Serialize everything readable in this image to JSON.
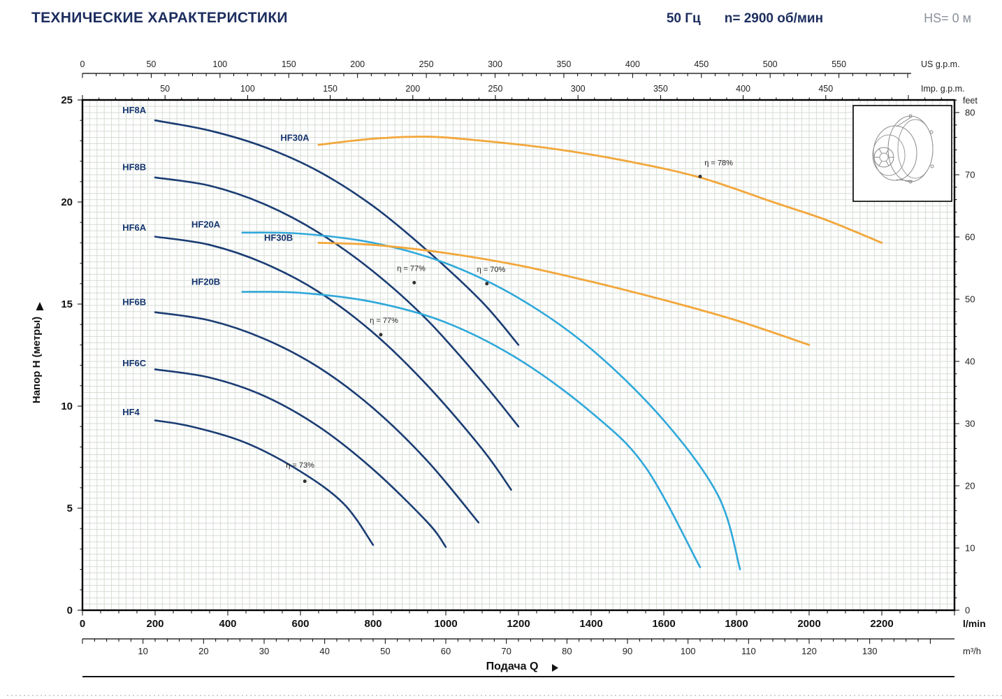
{
  "header": {
    "title": "ТЕХНИЧЕСКИЕ ХАРАКТЕРИСТИКИ",
    "frequency": "50 Гц",
    "speed": "n= 2900 об/мин",
    "suction_head": "HS= 0 м"
  },
  "axes": {
    "us_gpm": {
      "unit": "US g.p.m.",
      "ticks": [
        0,
        50,
        100,
        150,
        200,
        250,
        300,
        350,
        400,
        450,
        500,
        550
      ]
    },
    "imp_gpm": {
      "unit": "Imp. g.p.m.",
      "ticks": [
        50,
        100,
        150,
        200,
        250,
        300,
        350,
        400,
        450
      ]
    },
    "lmin": {
      "unit": "l/min",
      "ticks": [
        0,
        200,
        400,
        600,
        800,
        1000,
        1200,
        1400,
        1600,
        1800,
        2000,
        2200
      ]
    },
    "m3h": {
      "unit": "m³/h",
      "ticks": [
        10,
        20,
        30,
        40,
        50,
        60,
        70,
        80,
        90,
        100,
        110,
        120,
        130
      ]
    },
    "head_m": {
      "title": "Напор H (метры)",
      "ticks": [
        0,
        5,
        10,
        15,
        20,
        25
      ]
    },
    "feet": {
      "unit": "feet",
      "ticks": [
        0,
        10,
        20,
        30,
        40,
        50,
        60,
        70,
        80
      ]
    },
    "flow_title": "Подача Q"
  },
  "chart_data": {
    "type": "line",
    "title": "Pump performance curves H(Q)",
    "x_unit": "l/min",
    "y_unit": "m",
    "xlim": [
      0,
      2400
    ],
    "ylim": [
      0,
      25
    ],
    "grid": true,
    "series": [
      {
        "name": "HF8A",
        "color": "#1b3d73",
        "width": 2.6,
        "label": [
          110,
          24.35
        ],
        "points": [
          [
            200,
            24.0
          ],
          [
            350,
            23.5
          ],
          [
            500,
            22.7
          ],
          [
            650,
            21.5
          ],
          [
            800,
            19.8
          ],
          [
            950,
            17.6
          ],
          [
            1100,
            15.1
          ],
          [
            1200,
            13.0
          ]
        ]
      },
      {
        "name": "HF8B",
        "color": "#1b3d73",
        "width": 2.6,
        "label": [
          110,
          21.55
        ],
        "points": [
          [
            200,
            21.2
          ],
          [
            350,
            20.8
          ],
          [
            500,
            19.9
          ],
          [
            650,
            18.5
          ],
          [
            800,
            16.6
          ],
          [
            950,
            14.2
          ],
          [
            1100,
            11.2
          ],
          [
            1200,
            9.0
          ]
        ]
      },
      {
        "name": "HF6A",
        "color": "#1b3d73",
        "width": 2.6,
        "label": [
          110,
          18.6
        ],
        "points": [
          [
            200,
            18.3
          ],
          [
            350,
            17.9
          ],
          [
            500,
            17.0
          ],
          [
            650,
            15.6
          ],
          [
            800,
            13.6
          ],
          [
            950,
            11.0
          ],
          [
            1100,
            7.9
          ],
          [
            1180,
            5.9
          ]
        ]
      },
      {
        "name": "HF6B",
        "color": "#1b3d73",
        "width": 2.6,
        "label": [
          110,
          14.95
        ],
        "points": [
          [
            200,
            14.6
          ],
          [
            350,
            14.2
          ],
          [
            500,
            13.3
          ],
          [
            650,
            11.9
          ],
          [
            800,
            9.9
          ],
          [
            950,
            7.3
          ],
          [
            1090,
            4.3
          ]
        ]
      },
      {
        "name": "HF6C",
        "color": "#1b3d73",
        "width": 2.6,
        "label": [
          110,
          11.95
        ],
        "points": [
          [
            200,
            11.8
          ],
          [
            350,
            11.4
          ],
          [
            500,
            10.5
          ],
          [
            650,
            9.0
          ],
          [
            800,
            6.9
          ],
          [
            950,
            4.3
          ],
          [
            1000,
            3.1
          ]
        ]
      },
      {
        "name": "HF4",
        "color": "#1b3d73",
        "width": 2.6,
        "label": [
          110,
          9.55
        ],
        "points": [
          [
            200,
            9.3
          ],
          [
            300,
            9.0
          ],
          [
            450,
            8.2
          ],
          [
            600,
            6.8
          ],
          [
            720,
            5.2
          ],
          [
            800,
            3.2
          ]
        ]
      },
      {
        "name": "HF20A",
        "color": "#2fa8da",
        "width": 2.6,
        "label": [
          300,
          18.75
        ],
        "points": [
          [
            440,
            18.5
          ],
          [
            600,
            18.45
          ],
          [
            800,
            18.0
          ],
          [
            1000,
            17.0
          ],
          [
            1200,
            15.3
          ],
          [
            1400,
            12.8
          ],
          [
            1600,
            9.3
          ],
          [
            1750,
            5.6
          ],
          [
            1810,
            2.0
          ]
        ]
      },
      {
        "name": "HF20B",
        "color": "#2fa8da",
        "width": 2.6,
        "label": [
          300,
          15.95
        ],
        "points": [
          [
            440,
            15.6
          ],
          [
            600,
            15.55
          ],
          [
            800,
            15.1
          ],
          [
            1000,
            14.1
          ],
          [
            1200,
            12.3
          ],
          [
            1400,
            9.7
          ],
          [
            1550,
            7.0
          ],
          [
            1700,
            2.1
          ]
        ]
      },
      {
        "name": "HF30A",
        "color": "#f2a73b",
        "width": 2.8,
        "label": [
          545,
          23.0
        ],
        "points": [
          [
            650,
            22.8
          ],
          [
            800,
            23.1
          ],
          [
            950,
            23.2
          ],
          [
            1100,
            23.0
          ],
          [
            1300,
            22.6
          ],
          [
            1500,
            22.0
          ],
          [
            1700,
            21.2
          ],
          [
            1900,
            20.0
          ],
          [
            2050,
            19.1
          ],
          [
            2200,
            18.0
          ]
        ]
      },
      {
        "name": "HF30B",
        "color": "#f2a73b",
        "width": 2.8,
        "label": [
          500,
          18.1
        ],
        "points": [
          [
            650,
            18.0
          ],
          [
            800,
            17.9
          ],
          [
            1000,
            17.5
          ],
          [
            1200,
            16.9
          ],
          [
            1400,
            16.1
          ],
          [
            1600,
            15.2
          ],
          [
            1800,
            14.2
          ],
          [
            2000,
            13.0
          ]
        ]
      }
    ],
    "efficiency_points": [
      {
        "text": "η = 78%",
        "dot": [
          1700,
          21.25
        ],
        "label": [
          1712,
          21.8
        ],
        "anchor": "start"
      },
      {
        "text": "η = 77%",
        "dot": [
          913,
          16.05
        ],
        "label": [
          905,
          16.62
        ],
        "anchor": "middle"
      },
      {
        "text": "η = 70%",
        "dot": [
          1113,
          16.0
        ],
        "label": [
          1125,
          16.58
        ],
        "anchor": "middle"
      },
      {
        "text": "η = 77%",
        "dot": [
          821,
          13.5
        ],
        "label": [
          830,
          14.08
        ],
        "anchor": "middle"
      },
      {
        "text": "η = 73%",
        "dot": [
          612,
          6.32
        ],
        "label": [
          560,
          6.98
        ],
        "anchor": "start"
      }
    ]
  }
}
